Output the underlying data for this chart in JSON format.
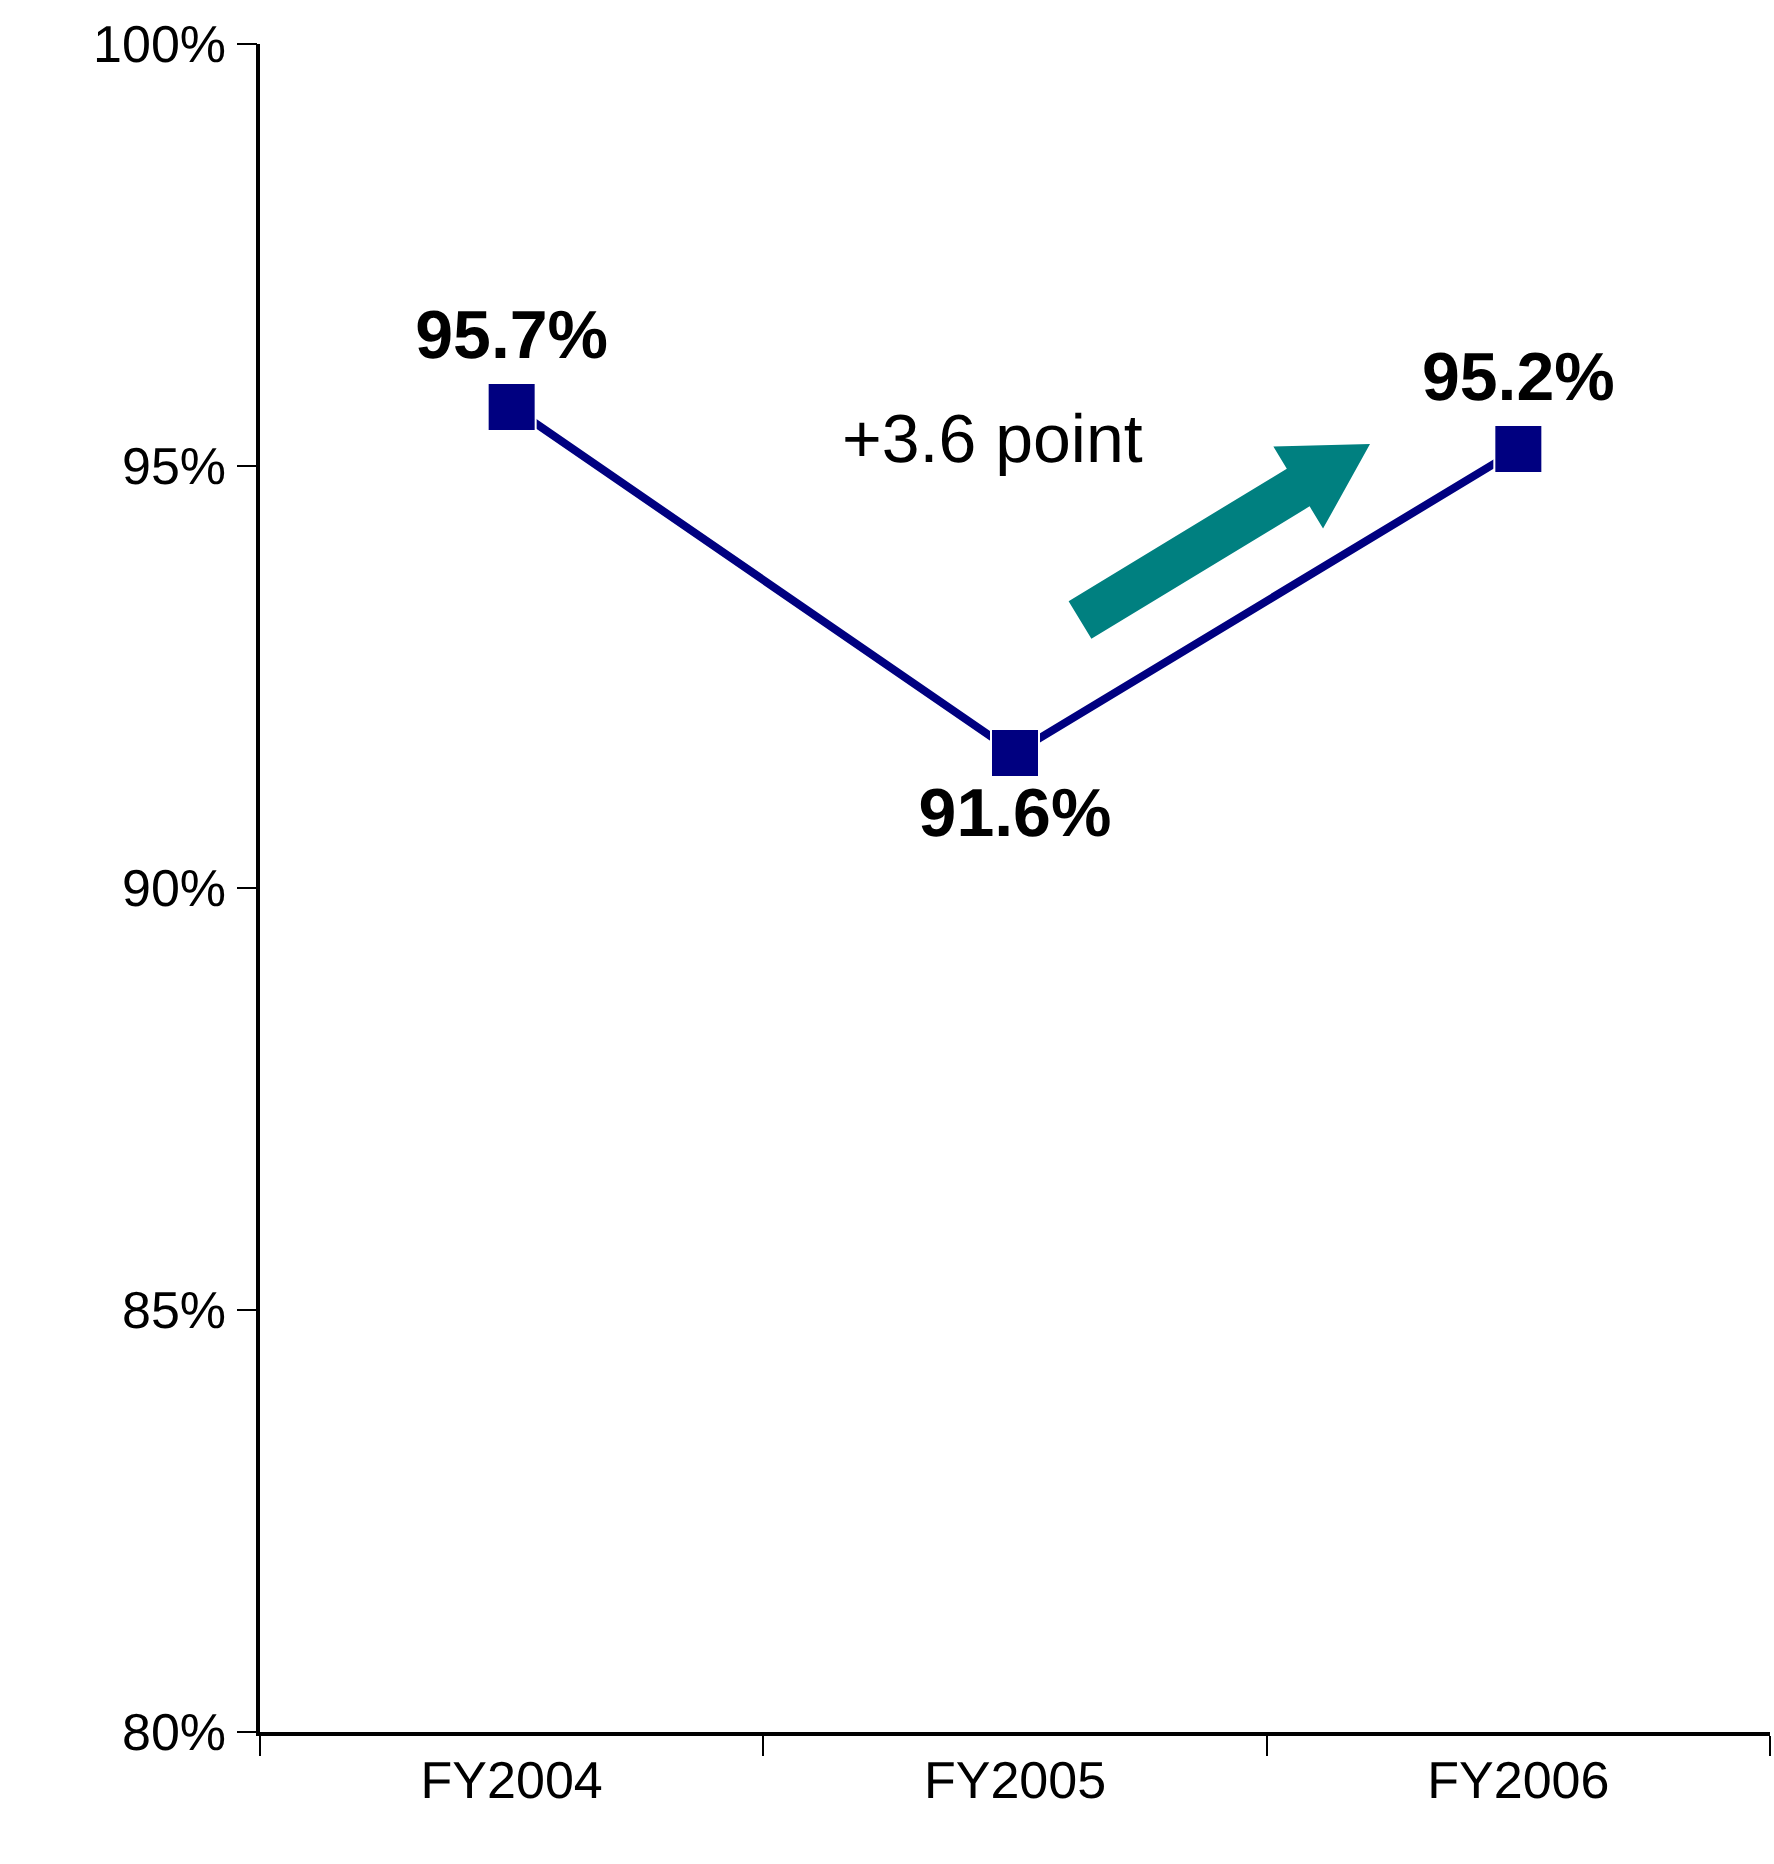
{
  "chart_data": {
    "type": "line",
    "categories": [
      "FY2004",
      "FY2005",
      "FY2006"
    ],
    "series": [
      {
        "color": "#000080",
        "values": [
          95.7,
          91.6,
          95.2
        ],
        "value_labels": [
          "95.7%",
          "91.6%",
          "95.2%"
        ]
      }
    ],
    "ylim": [
      80,
      100
    ],
    "yticks": [
      {
        "value": 80,
        "label": "80%"
      },
      {
        "value": 85,
        "label": "85%"
      },
      {
        "value": 90,
        "label": "90%"
      },
      {
        "value": 95,
        "label": "95%"
      },
      {
        "value": 100,
        "label": "100%"
      }
    ],
    "legend": false,
    "marker": "square",
    "line_style": "solid",
    "annotations": [
      "+3.6 point"
    ]
  }
}
